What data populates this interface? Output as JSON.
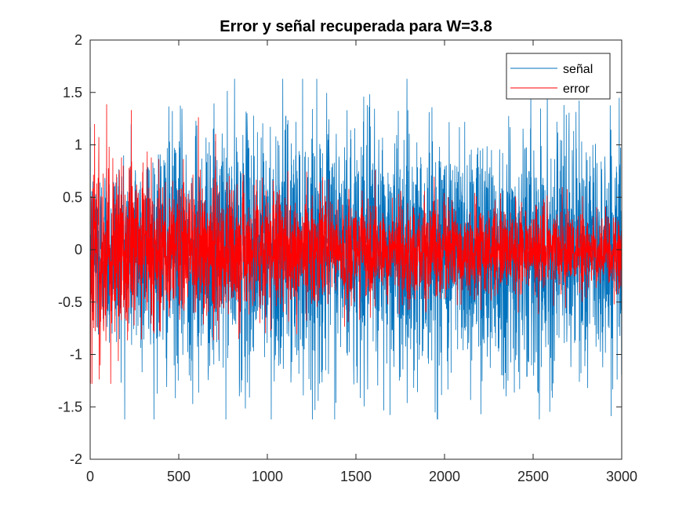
{
  "chart_data": {
    "type": "line",
    "title": "Error y señal recuperada para W=3.8",
    "xlabel": "",
    "ylabel": "",
    "xlim": [
      0,
      3000
    ],
    "ylim": [
      -2,
      2
    ],
    "x_ticks": [
      0,
      500,
      1000,
      1500,
      2000,
      2500,
      3000
    ],
    "y_ticks": [
      2,
      1.5,
      1,
      0.5,
      0,
      -0.5,
      -1,
      -1.5,
      -2
    ],
    "x_tick_labels": [
      "0",
      "500",
      "1000",
      "1500",
      "2000",
      "2500",
      "3000"
    ],
    "y_tick_labels": [
      "2",
      "1.5",
      "1",
      "0.5",
      "0",
      "-0.5",
      "-1",
      "-1.5",
      "-2"
    ],
    "grid": false,
    "legend_position": "top-right",
    "n_points": 3000,
    "series": [
      {
        "name": "señal",
        "color": "#0072BD",
        "description_values": {
          "mean": 0,
          "amplitude_envelope": [
            [
              0,
              1.0
            ],
            [
              300,
              1.3
            ],
            [
              600,
              1.4
            ],
            [
              1000,
              1.45
            ],
            [
              1500,
              1.45
            ],
            [
              2000,
              1.4
            ],
            [
              2500,
              1.4
            ],
            [
              3000,
              1.3
            ]
          ],
          "max": 1.63,
          "min": -1.62
        }
      },
      {
        "name": "error",
        "color": "#FF0000",
        "description_values": {
          "mean": 0,
          "amplitude_envelope": [
            [
              0,
              1.4
            ],
            [
              100,
              1.2
            ],
            [
              200,
              1.0
            ],
            [
              400,
              0.85
            ],
            [
              800,
              0.75
            ],
            [
              1200,
              0.65
            ],
            [
              1600,
              0.6
            ],
            [
              2000,
              0.55
            ],
            [
              2500,
              0.5
            ],
            [
              3000,
              0.45
            ]
          ],
          "max": 1.43,
          "min": -1.28
        }
      }
    ]
  }
}
